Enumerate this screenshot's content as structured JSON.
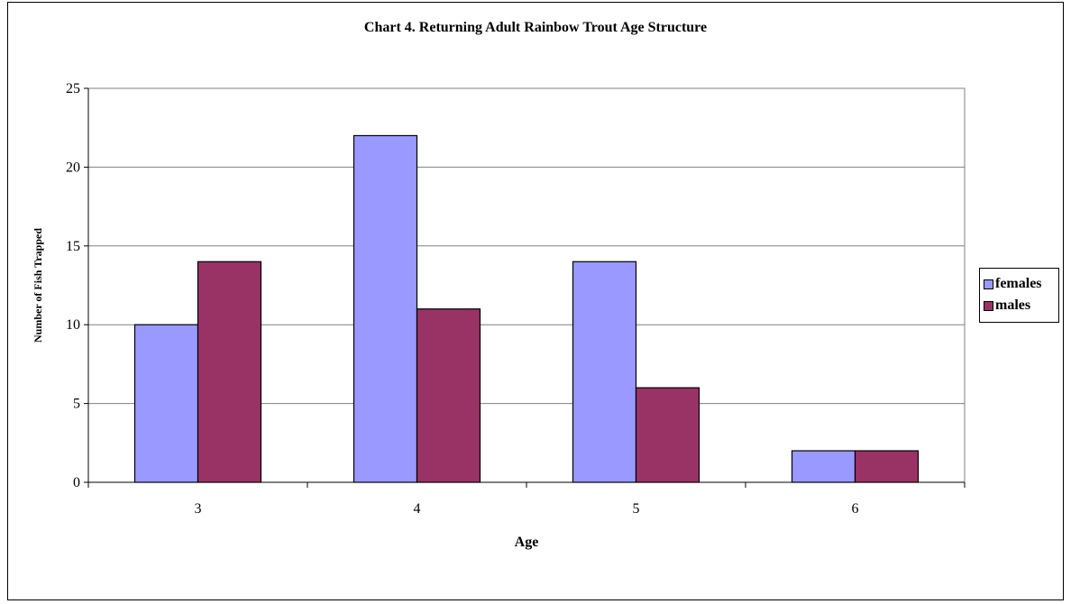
{
  "chart_data": {
    "type": "bar",
    "title": "Chart 4. Returning Adult Rainbow Trout Age Structure",
    "xlabel": "Age",
    "ylabel": "Number of Fish Trapped",
    "categories": [
      "3",
      "4",
      "5",
      "6"
    ],
    "series": [
      {
        "name": "females",
        "values": [
          10,
          22,
          14,
          2
        ],
        "color": "#9999ff"
      },
      {
        "name": "males",
        "values": [
          14,
          11,
          6,
          2
        ],
        "color": "#993366"
      }
    ],
    "ylim": [
      0,
      25
    ],
    "yticks": [
      0,
      5,
      10,
      15,
      20,
      25
    ],
    "grid": true,
    "legend_position": "right"
  }
}
